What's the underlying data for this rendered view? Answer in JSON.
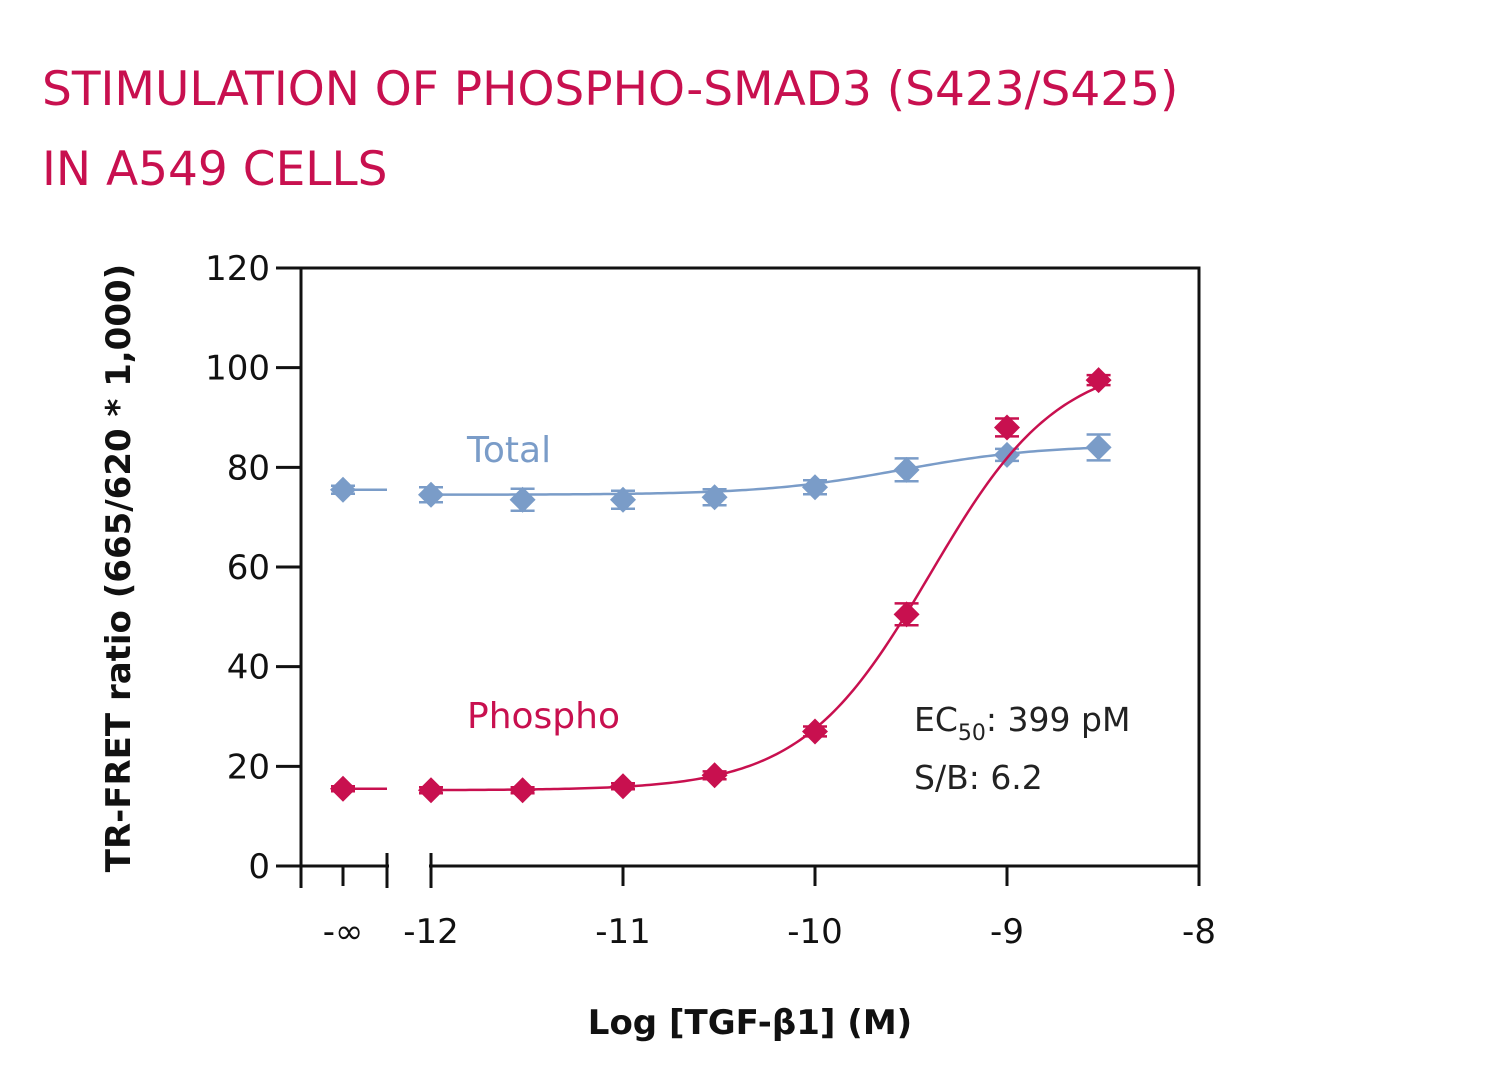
{
  "chart_data": {
    "type": "scatter",
    "title_lines": [
      "STIMULATION OF PHOSPHO-SMAD3 (S423/S425)",
      "IN A549 CELLS"
    ],
    "xlabel": "Log [TGF-β1] (M)",
    "ylabel": "TR-FRET ratio (665/620 * 1,000)",
    "ylim": [
      0,
      120
    ],
    "yticks": [
      0,
      20,
      40,
      60,
      80,
      100,
      120
    ],
    "xlim": [
      -12,
      -8
    ],
    "xticks": [
      -12,
      -11,
      -10,
      -9,
      -8
    ],
    "xtick_labels": [
      "-12",
      "-11",
      "-10",
      "-9",
      "-8"
    ],
    "baseline_tick_label": "-∞",
    "grid": false,
    "series": [
      {
        "name": "Total",
        "color": "#7a9cc8",
        "baseline": {
          "y": 75.5,
          "err": 0.8
        },
        "x": [
          -12,
          -11.523,
          -11,
          -10.523,
          -10,
          -9.523,
          -9,
          -8.523
        ],
        "y": [
          74.5,
          73.5,
          73.5,
          74,
          76,
          79.5,
          82.5,
          84
        ],
        "err": [
          1.5,
          2.2,
          1.8,
          1.6,
          1.4,
          2.3,
          1.2,
          2.6
        ],
        "fit": {
          "bottom": 74.5,
          "top": 84.5,
          "logec50": -9.55,
          "hill": 1.2
        }
      },
      {
        "name": "Phospho",
        "color": "#c8104f",
        "baseline": {
          "y": 15.5,
          "err": 0.5
        },
        "x": [
          -12,
          -11.523,
          -11,
          -10.523,
          -10,
          -9.523,
          -9,
          -8.523
        ],
        "y": [
          15.2,
          15.2,
          16,
          18.2,
          27,
          50.5,
          88,
          97.5
        ],
        "err": [
          0.6,
          0.6,
          0.6,
          0.8,
          1.0,
          2.2,
          1.8,
          1.0
        ],
        "fit": {
          "bottom": 15.2,
          "top": 102,
          "logec50": -9.4,
          "hill": 1.3
        }
      }
    ],
    "annotations": {
      "ec50_prefix": "EC",
      "ec50_sub": "50",
      "ec50_value": ": 399 pM",
      "sb": "S/B: 6.2"
    }
  }
}
